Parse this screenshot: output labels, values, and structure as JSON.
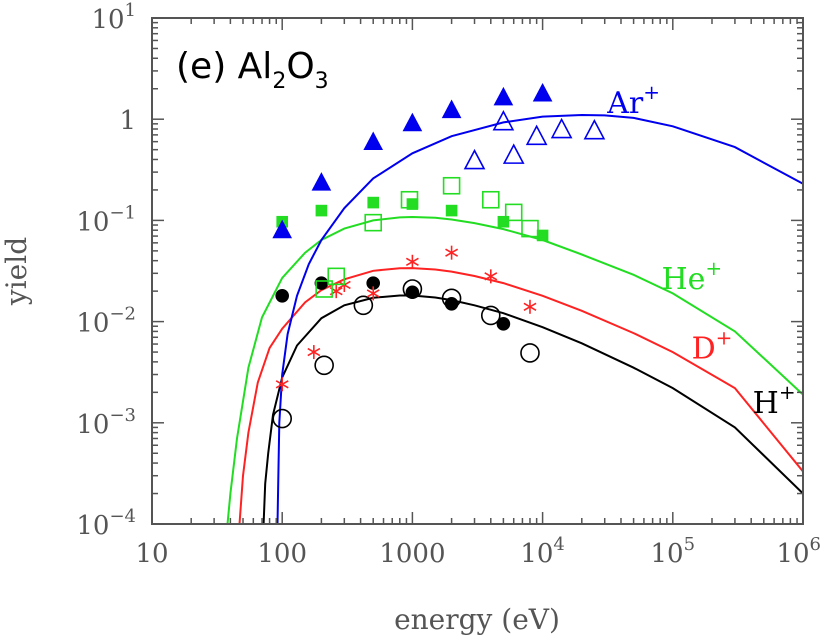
{
  "chart_data": {
    "type": "scatter",
    "title": "(e) Al2O3",
    "title_parts": {
      "prefix": "(e) Al",
      "sub1": "2",
      "mid": "O",
      "sub2": "3"
    },
    "xlabel": "energy (eV)",
    "ylabel": "yield",
    "x_scale": "log",
    "y_scale": "log",
    "xlim": [
      10,
      1000000
    ],
    "ylim": [
      0.0001,
      10
    ],
    "grid": false,
    "x_ticks": [
      {
        "value": 10,
        "base": "10",
        "exp": ""
      },
      {
        "value": 100,
        "base": "100",
        "exp": ""
      },
      {
        "value": 1000,
        "base": "1000",
        "exp": ""
      },
      {
        "value": 10000,
        "base": "10",
        "exp": "4"
      },
      {
        "value": 100000,
        "base": "10",
        "exp": "5"
      },
      {
        "value": 1000000,
        "base": "10",
        "exp": "6"
      }
    ],
    "y_ticks": [
      {
        "value": 0.0001,
        "base": "10",
        "exp": "−4"
      },
      {
        "value": 0.001,
        "base": "10",
        "exp": "−3"
      },
      {
        "value": 0.01,
        "base": "10",
        "exp": "−2"
      },
      {
        "value": 0.1,
        "base": "10",
        "exp": "−1"
      },
      {
        "value": 1,
        "base": "1",
        "exp": ""
      },
      {
        "value": 10,
        "base": "10",
        "exp": "1"
      }
    ],
    "series": [
      {
        "name": "H+",
        "label_base": "H",
        "label_sup": "+",
        "color": "#000000",
        "label_pos": {
          "x": 600000,
          "y": 0.00125
        },
        "curve": [
          [
            72,
            0.0001
          ],
          [
            74,
            0.00025
          ],
          [
            78,
            0.0005
          ],
          [
            85,
            0.0012
          ],
          [
            100,
            0.0028
          ],
          [
            130,
            0.0058
          ],
          [
            200,
            0.0108
          ],
          [
            300,
            0.0145
          ],
          [
            500,
            0.0172
          ],
          [
            800,
            0.0181
          ],
          [
            1000,
            0.0181
          ],
          [
            1500,
            0.0173
          ],
          [
            2000,
            0.0163
          ],
          [
            3000,
            0.0145
          ],
          [
            5000,
            0.0121
          ],
          [
            10000,
            0.0088
          ],
          [
            20000,
            0.0061
          ],
          [
            50000,
            0.0035
          ],
          [
            100000,
            0.0022
          ],
          [
            300000,
            0.0009
          ],
          [
            1000000,
            0.0002
          ]
        ],
        "filled": {
          "marker": "circle",
          "points": [
            [
              100,
              0.018
            ],
            [
              200,
              0.024
            ],
            [
              500,
              0.024
            ],
            [
              1000,
              0.0195
            ],
            [
              2000,
              0.015
            ],
            [
              5000,
              0.0095
            ]
          ]
        },
        "open": {
          "marker": "circle",
          "points": [
            [
              100,
              0.0011
            ],
            [
              210,
              0.0037
            ],
            [
              420,
              0.0145
            ],
            [
              1000,
              0.021
            ],
            [
              2000,
              0.017
            ],
            [
              4000,
              0.0115
            ],
            [
              8000,
              0.0049
            ]
          ]
        }
      },
      {
        "name": "D+",
        "label_base": "D",
        "label_sup": "+",
        "color": "#ff2222",
        "label_pos": {
          "x": 200000,
          "y": 0.0043
        },
        "curve": [
          [
            47,
            0.0001
          ],
          [
            50,
            0.0003
          ],
          [
            55,
            0.0008
          ],
          [
            65,
            0.0025
          ],
          [
            80,
            0.0055
          ],
          [
            100,
            0.0085
          ],
          [
            150,
            0.0155
          ],
          [
            200,
            0.0205
          ],
          [
            300,
            0.0262
          ],
          [
            500,
            0.0318
          ],
          [
            800,
            0.0337
          ],
          [
            1000,
            0.0338
          ],
          [
            1500,
            0.0327
          ],
          [
            2000,
            0.0312
          ],
          [
            3000,
            0.0282
          ],
          [
            5000,
            0.024
          ],
          [
            10000,
            0.018
          ],
          [
            20000,
            0.0128
          ],
          [
            50000,
            0.0077
          ],
          [
            100000,
            0.005
          ],
          [
            300000,
            0.0022
          ],
          [
            1000000,
            0.00033
          ]
        ],
        "star": {
          "marker": "star",
          "points": [
            [
              100,
              0.0024
            ],
            [
              175,
              0.005
            ],
            [
              260,
              0.02
            ],
            [
              300,
              0.023
            ],
            [
              500,
              0.019
            ],
            [
              1000,
              0.039
            ],
            [
              2000,
              0.048
            ],
            [
              4000,
              0.028
            ],
            [
              8000,
              0.014
            ]
          ]
        }
      },
      {
        "name": "He+",
        "label_base": "He",
        "label_sup": "+",
        "color": "#22dd22",
        "label_pos": {
          "x": 140000,
          "y": 0.021
        },
        "curve": [
          [
            38,
            0.0001
          ],
          [
            40,
            0.0002
          ],
          [
            45,
            0.0007
          ],
          [
            55,
            0.0035
          ],
          [
            70,
            0.011
          ],
          [
            100,
            0.027
          ],
          [
            150,
            0.048
          ],
          [
            200,
            0.064
          ],
          [
            300,
            0.083
          ],
          [
            500,
            0.1
          ],
          [
            800,
            0.107
          ],
          [
            1000,
            0.108
          ],
          [
            1500,
            0.106
          ],
          [
            2000,
            0.102
          ],
          [
            3000,
            0.094
          ],
          [
            5000,
            0.082
          ],
          [
            10000,
            0.064
          ],
          [
            20000,
            0.046
          ],
          [
            50000,
            0.029
          ],
          [
            100000,
            0.019
          ],
          [
            300000,
            0.008
          ],
          [
            1000000,
            0.0019
          ]
        ],
        "filled": {
          "marker": "square",
          "points": [
            [
              100,
              0.097
            ],
            [
              200,
              0.125
            ],
            [
              500,
              0.15
            ],
            [
              1000,
              0.145
            ],
            [
              2000,
              0.125
            ],
            [
              5000,
              0.097
            ],
            [
              10000,
              0.071
            ]
          ]
        },
        "open": {
          "marker": "square",
          "points": [
            [
              210,
              0.021
            ],
            [
              260,
              0.028
            ],
            [
              500,
              0.095
            ],
            [
              950,
              0.16
            ],
            [
              2000,
              0.22
            ],
            [
              4000,
              0.16
            ],
            [
              6000,
              0.12
            ],
            [
              8000,
              0.083
            ]
          ]
        }
      },
      {
        "name": "Ar+",
        "label_base": "Ar",
        "label_sup": "+",
        "color": "#0000ee",
        "label_pos": {
          "x": 50000,
          "y": 1.15
        },
        "curve": [
          [
            92,
            0.0001
          ],
          [
            95,
            0.001
          ],
          [
            100,
            0.003
          ],
          [
            110,
            0.0075
          ],
          [
            130,
            0.018
          ],
          [
            160,
            0.037
          ],
          [
            200,
            0.064
          ],
          [
            300,
            0.132
          ],
          [
            500,
            0.26
          ],
          [
            1000,
            0.46
          ],
          [
            2000,
            0.68
          ],
          [
            5000,
            0.93
          ],
          [
            10000,
            1.06
          ],
          [
            20000,
            1.1
          ],
          [
            30000,
            1.09
          ],
          [
            50000,
            1.03
          ],
          [
            100000,
            0.85
          ],
          [
            300000,
            0.53
          ],
          [
            1000000,
            0.23
          ]
        ],
        "filled": {
          "marker": "triangle",
          "points": [
            [
              100,
              0.078
            ],
            [
              200,
              0.23
            ],
            [
              500,
              0.58
            ],
            [
              1000,
              0.89
            ],
            [
              2000,
              1.2
            ],
            [
              5000,
              1.6
            ],
            [
              10000,
              1.75
            ]
          ]
        },
        "open": {
          "marker": "triangle",
          "points": [
            [
              3000,
              0.38
            ],
            [
              5000,
              0.92
            ],
            [
              6000,
              0.43
            ],
            [
              9000,
              0.66
            ],
            [
              14000,
              0.77
            ],
            [
              25000,
              0.75
            ]
          ]
        }
      }
    ]
  }
}
